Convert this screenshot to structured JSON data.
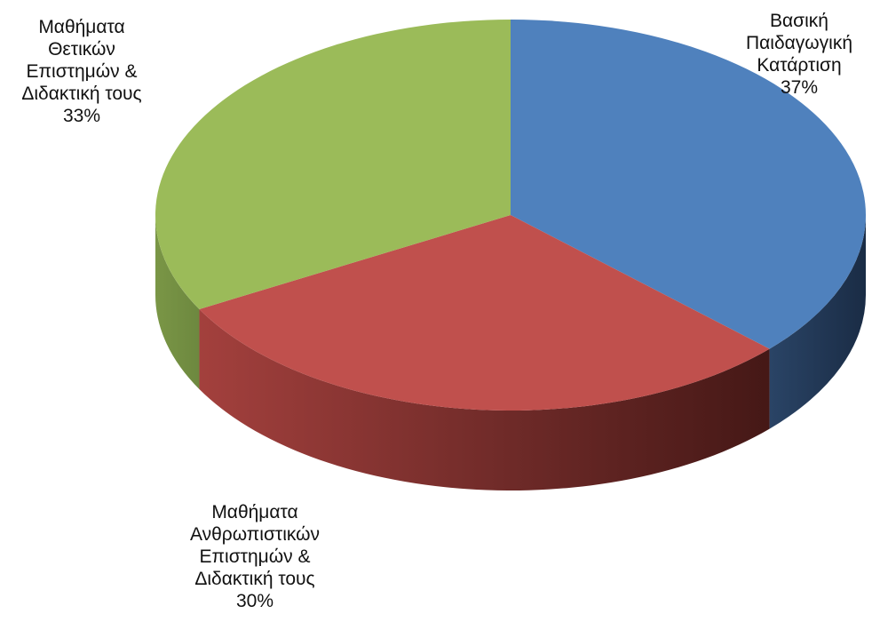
{
  "chart_data": {
    "type": "pie",
    "style": "3d",
    "title": "",
    "legend": "none",
    "slices": [
      {
        "name": "Βασική Παιδαγωγική Κατάρτιση",
        "value": 37,
        "color": "#4F81BD",
        "label_lines": [
          "Βασική",
          "Παιδαγωγική",
          "Κατάρτιση",
          "37%"
        ]
      },
      {
        "name": "Μαθήματα Ανθρωπιστικών Επιστημών & Διδακτική τους",
        "value": 30,
        "color": "#C0504D",
        "label_lines": [
          "Μαθήματα",
          "Ανθρωπιστικών",
          "Επιστημών &",
          "Διδακτική τους",
          "30%"
        ]
      },
      {
        "name": "Μαθήματα Θετικών Επιστημών & Διδακτική τους",
        "value": 33,
        "color": "#9BBB59",
        "label_lines": [
          "Μαθήματα",
          "Θετικών",
          "Επιστημών &",
          "Διδακτική τους",
          "33%"
        ]
      }
    ]
  }
}
